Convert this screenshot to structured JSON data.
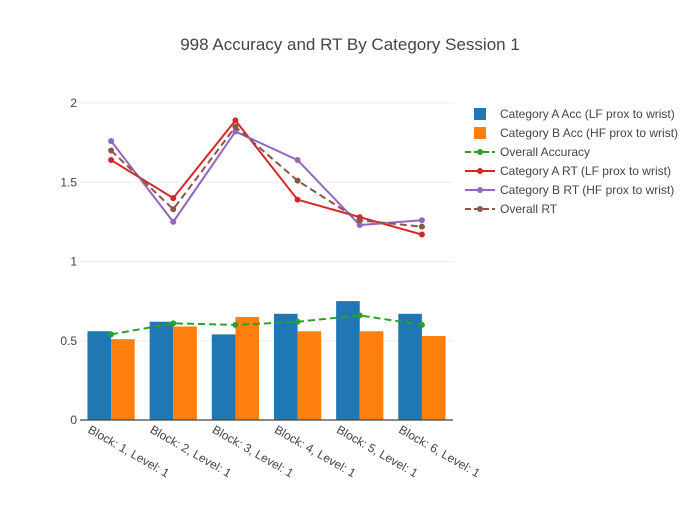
{
  "chart_data": {
    "type": "bar",
    "title": "998 Accuracy and RT By Category Session 1",
    "xlabel": "",
    "ylabel": "",
    "ylim": [
      0,
      2
    ],
    "yticks": [
      0,
      0.5,
      1,
      1.5,
      2
    ],
    "ytick_labels": [
      "0",
      "0.5",
      "1",
      "1.5",
      "2"
    ],
    "grid": true,
    "legend_position": "top-right",
    "categories": [
      "Block: 1, Level: 1",
      "Block: 2, Level: 1",
      "Block: 3, Level: 1",
      "Block: 4, Level: 1",
      "Block: 5, Level: 1",
      "Block: 6, Level: 1"
    ],
    "series": [
      {
        "name": "Category A Acc (LF prox to wrist)",
        "kind": "bar",
        "color": "#1f77b4",
        "values": [
          0.56,
          0.62,
          0.54,
          0.67,
          0.75,
          0.67
        ]
      },
      {
        "name": "Category B Acc (HF prox to wrist)",
        "kind": "bar",
        "color": "#ff7f0e",
        "values": [
          0.51,
          0.59,
          0.65,
          0.56,
          0.56,
          0.53
        ]
      },
      {
        "name": "Overall Accuracy",
        "kind": "line",
        "dash": true,
        "color": "#2ca02c",
        "values": [
          0.54,
          0.61,
          0.6,
          0.62,
          0.66,
          0.6
        ]
      },
      {
        "name": "Category A RT (LF prox to wrist)",
        "kind": "line",
        "dash": false,
        "color": "#d62728",
        "values": [
          1.64,
          1.4,
          1.89,
          1.39,
          1.28,
          1.17
        ]
      },
      {
        "name": "Category B RT (HF prox to wrist)",
        "kind": "line",
        "dash": false,
        "color": "#9467bd",
        "values": [
          1.76,
          1.25,
          1.82,
          1.64,
          1.23,
          1.26
        ]
      },
      {
        "name": "Overall RT",
        "kind": "line",
        "dash": true,
        "color": "#8c564b",
        "values": [
          1.7,
          1.33,
          1.85,
          1.51,
          1.26,
          1.22
        ]
      }
    ]
  }
}
